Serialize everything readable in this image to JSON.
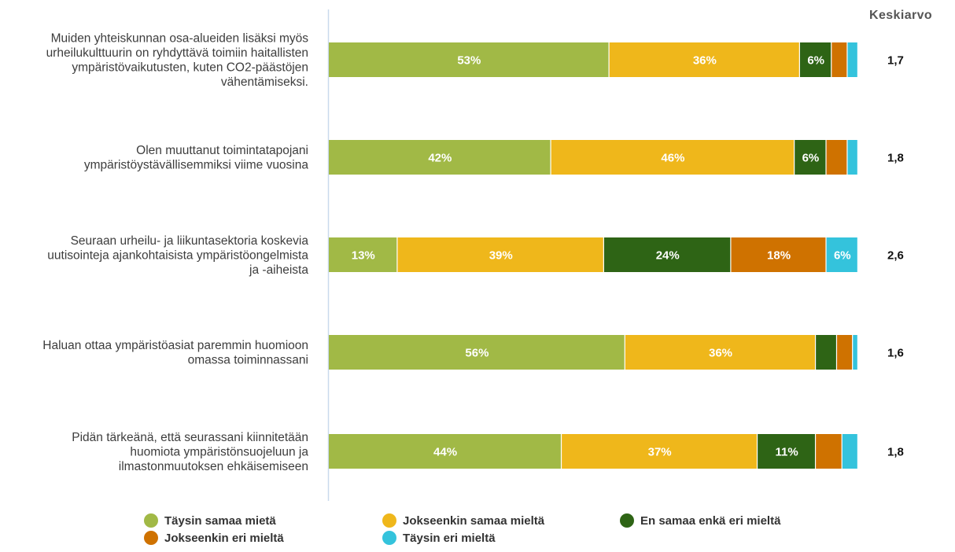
{
  "chart_data": {
    "type": "bar",
    "orientation": "horizontal",
    "stacked": true,
    "mean_header": "Keskiarvo",
    "categories": [
      [
        "Muiden yhteiskunnan osa-alueiden lisäksi myös",
        "urheilukulttuurin on ryhdyttävä toimiin haitallisten",
        "ympäristövaikutusten, kuten CO2-päästöjen",
        "vähentämiseksi."
      ],
      [
        "Olen muuttanut toimintatapojani",
        "ympäristöystävällisemmiksi viime vuosina"
      ],
      [
        "Seuraan urheilu- ja liikuntasektoria koskevia",
        "uutisointeja ajankohtaisista ympäristöongelmista",
        "ja -aiheista"
      ],
      [
        "Haluan ottaa ympäristöasiat paremmin huomioon",
        "omassa toiminnassani"
      ],
      [
        "Pidän tärkeänä, että seurassani kiinnitetään",
        "huomiota ympäristönsuojeluun ja",
        "ilmastonmuutoksen ehkäisemiseen"
      ]
    ],
    "series": [
      {
        "name": "Täysin samaa mietä",
        "color": "#a1b946",
        "values": [
          53,
          42,
          13,
          56,
          44
        ]
      },
      {
        "name": "Jokseenkin samaa mieltä",
        "color": "#efb71b",
        "values": [
          36,
          46,
          39,
          36,
          37
        ]
      },
      {
        "name": "En samaa enkä eri mieltä",
        "color": "#2e6415",
        "values": [
          6,
          6,
          24,
          4,
          11
        ]
      },
      {
        "name": "Jokseenkin eri mieltä",
        "color": "#cf7200",
        "values": [
          3,
          4,
          18,
          3,
          5
        ]
      },
      {
        "name": "Täysin eri mieltä",
        "color": "#34c3dc",
        "values": [
          2,
          2,
          6,
          1,
          3
        ]
      }
    ],
    "segment_labels": [
      [
        "53%",
        "36%",
        "6%",
        "",
        ""
      ],
      [
        "42%",
        "46%",
        "6%",
        "",
        ""
      ],
      [
        "13%",
        "39%",
        "24%",
        "18%",
        "6%"
      ],
      [
        "56%",
        "36%",
        "",
        "",
        ""
      ],
      [
        "44%",
        "37%",
        "11%",
        "",
        ""
      ]
    ],
    "means": [
      "1,7",
      "1,8",
      "2,6",
      "1,6",
      "1,8"
    ],
    "xlim": [
      0,
      100
    ],
    "legend_position": "bottom",
    "grid": false
  }
}
